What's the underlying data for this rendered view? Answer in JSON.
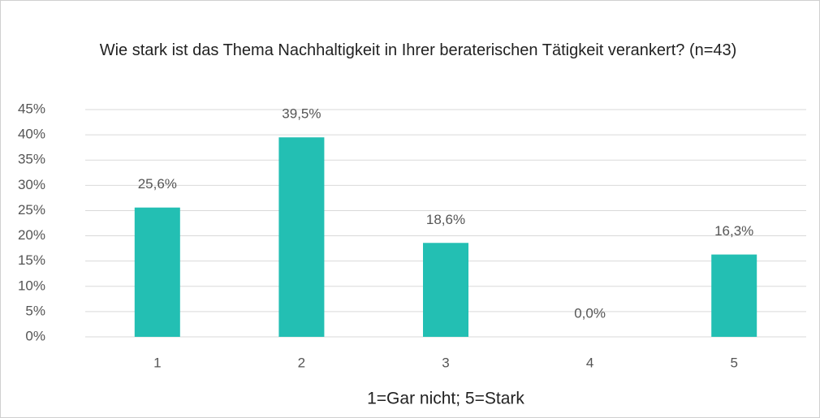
{
  "chart_data": {
    "type": "bar",
    "title": "Wie stark ist das Thema Nachhaltigkeit in Ihrer beraterischen Tätigkeit verankert? (n=43)",
    "x_label": "1=Gar nicht; 5=Stark",
    "categories": [
      "1",
      "2",
      "3",
      "4",
      "5"
    ],
    "values": [
      25.6,
      39.5,
      18.6,
      0,
      16.3
    ],
    "value_labels": [
      "25,6%",
      "39,5%",
      "18,6%",
      "0,0%",
      "16,3%"
    ],
    "color": "#23bfb3",
    "ylim": [
      0,
      45
    ],
    "yticks": [
      {
        "value": 0,
        "label": "0%"
      },
      {
        "value": 5,
        "label": "5%"
      },
      {
        "value": 10,
        "label": "10%"
      },
      {
        "value": 15,
        "label": "15%"
      },
      {
        "value": 20,
        "label": "20%"
      },
      {
        "value": 25,
        "label": "25%"
      },
      {
        "value": 30,
        "label": "30%"
      },
      {
        "value": 35,
        "label": "35%"
      },
      {
        "value": 40,
        "label": "40%"
      },
      {
        "value": 45,
        "label": "45%"
      }
    ],
    "grid": true
  }
}
